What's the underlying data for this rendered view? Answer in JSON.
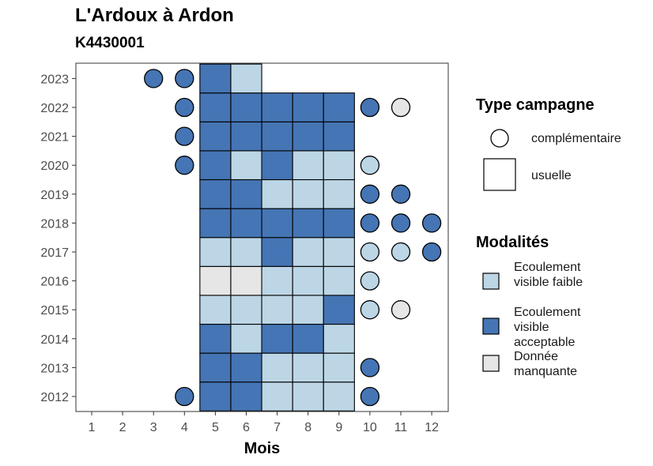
{
  "title": "L'Ardoux à Ardon",
  "subtitle": "K4430001",
  "legend": {
    "type_title": "Type campagne",
    "type_items": [
      "complémentaire",
      "usuelle"
    ],
    "mod_title": "Modalités",
    "mod_items": [
      {
        "label": "Ecoulement visible faible",
        "color": "#bcd6e6"
      },
      {
        "label": "Ecoulement visible acceptable",
        "color": "#4575b4"
      },
      {
        "label": "Donnée manquante",
        "color": "#e6e6e6"
      }
    ]
  },
  "chart_data": {
    "type": "heatmap",
    "title": "L'Ardoux à Ardon",
    "subtitle": "K4430001",
    "xlabel": "Mois",
    "ylabel": "",
    "x_ticks": [
      1,
      2,
      3,
      4,
      5,
      6,
      7,
      8,
      9,
      10,
      11,
      12
    ],
    "y_ticks": [
      2012,
      2013,
      2014,
      2015,
      2016,
      2017,
      2018,
      2019,
      2020,
      2021,
      2022,
      2023
    ],
    "colors": {
      "faible": "#bcd6e6",
      "acceptable": "#4575b4",
      "manquante": "#e6e6e6"
    },
    "usuelle": {
      "2023": {
        "5": "acceptable",
        "6": "faible"
      },
      "2022": {
        "5": "acceptable",
        "6": "acceptable",
        "7": "acceptable",
        "8": "acceptable",
        "9": "acceptable"
      },
      "2021": {
        "5": "acceptable",
        "6": "acceptable",
        "7": "acceptable",
        "8": "acceptable",
        "9": "acceptable"
      },
      "2020": {
        "5": "acceptable",
        "6": "faible",
        "7": "acceptable",
        "8": "faible",
        "9": "faible"
      },
      "2019": {
        "5": "acceptable",
        "6": "acceptable",
        "7": "faible",
        "8": "faible",
        "9": "faible"
      },
      "2018": {
        "5": "acceptable",
        "6": "acceptable",
        "7": "acceptable",
        "8": "acceptable",
        "9": "acceptable"
      },
      "2017": {
        "5": "faible",
        "6": "faible",
        "7": "acceptable",
        "8": "faible",
        "9": "faible"
      },
      "2016": {
        "5": "manquante",
        "6": "manquante",
        "7": "faible",
        "8": "faible",
        "9": "faible"
      },
      "2015": {
        "5": "faible",
        "6": "faible",
        "7": "faible",
        "8": "faible",
        "9": "acceptable"
      },
      "2014": {
        "5": "acceptable",
        "6": "faible",
        "7": "acceptable",
        "8": "acceptable",
        "9": "faible"
      },
      "2013": {
        "5": "acceptable",
        "6": "acceptable",
        "7": "faible",
        "8": "faible",
        "9": "faible"
      },
      "2012": {
        "5": "acceptable",
        "6": "acceptable",
        "7": "faible",
        "8": "faible",
        "9": "faible"
      }
    },
    "complementaire": {
      "2023": {
        "3": "acceptable",
        "4": "acceptable"
      },
      "2022": {
        "4": "acceptable",
        "10": "acceptable",
        "11": "manquante"
      },
      "2021": {
        "4": "acceptable"
      },
      "2020": {
        "4": "acceptable",
        "10": "faible"
      },
      "2019": {
        "10": "acceptable",
        "11": "acceptable"
      },
      "2018": {
        "10": "acceptable",
        "11": "acceptable",
        "12": "acceptable"
      },
      "2017": {
        "10": "faible",
        "11": "faible",
        "12": "acceptable"
      },
      "2016": {
        "10": "faible"
      },
      "2015": {
        "10": "faible",
        "11": "manquante"
      },
      "2013": {
        "10": "acceptable"
      },
      "2012": {
        "4": "acceptable",
        "10": "acceptable"
      }
    }
  }
}
